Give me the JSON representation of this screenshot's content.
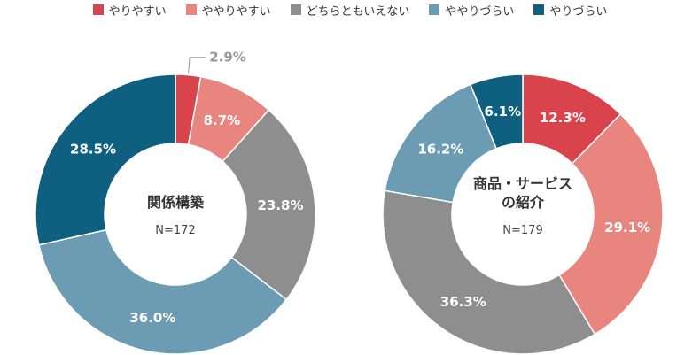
{
  "colors": {
    "series": [
      "#d9434c",
      "#e8857e",
      "#8e8e8e",
      "#6c9bb4",
      "#0f5f80"
    ],
    "outside_label": "#9a9a9a",
    "center_title": "#333333",
    "center_n": "#444444"
  },
  "chart_data": [
    {
      "type": "pie",
      "variant": "donut",
      "center_title": "関係構築",
      "center_n": "N=172",
      "categories": [
        "やりやすい",
        "ややりやすい",
        "どちらともいえない",
        "ややりづらい",
        "やりづらい"
      ],
      "values": [
        2.9,
        8.7,
        23.8,
        36.0,
        28.5
      ],
      "labels": [
        "2.9%",
        "8.7%",
        "23.8%",
        "36.0%",
        "28.5%"
      ],
      "legend_position": "top-center"
    },
    {
      "type": "pie",
      "variant": "donut",
      "center_title": "商品・サービス\nの紹介",
      "center_n": "N=179",
      "categories": [
        "やりやすい",
        "ややりやすい",
        "どちらともいえない",
        "ややりづらい",
        "やりづらい"
      ],
      "values": [
        12.3,
        29.1,
        36.3,
        16.2,
        6.1
      ],
      "labels": [
        "12.3%",
        "29.1%",
        "36.3%",
        "16.2%",
        "6.1%"
      ],
      "legend_position": "top-center"
    }
  ],
  "legend": {
    "items": [
      "やりやすい",
      "ややりやすい",
      "どちらともいえない",
      "ややりづらい",
      "やりづらい"
    ]
  }
}
